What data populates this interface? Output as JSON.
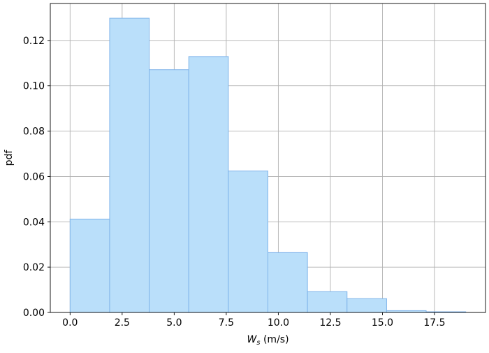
{
  "chart_data": {
    "type": "bar",
    "subtype": "histogram",
    "bin_edges": [
      0.0,
      1.9,
      3.8,
      5.7,
      7.6,
      9.5,
      11.4,
      13.3,
      15.2,
      17.1,
      19.0
    ],
    "values": [
      0.0412,
      0.1298,
      0.1071,
      0.1129,
      0.0624,
      0.0264,
      0.0092,
      0.0061,
      0.0008,
      0.0003
    ],
    "xlabel_symbol": "W",
    "xlabel_subscript": "s",
    "xlabel_unit": " (m/s)",
    "ylabel": "pdf",
    "xlim": [
      -0.95,
      19.95
    ],
    "ylim": [
      0,
      0.1363
    ],
    "xticks": [
      0.0,
      2.5,
      5.0,
      7.5,
      10.0,
      12.5,
      15.0,
      17.5
    ],
    "xtick_labels": [
      "0.0",
      "2.5",
      "5.0",
      "7.5",
      "10.0",
      "12.5",
      "15.0",
      "17.5"
    ],
    "yticks": [
      0.0,
      0.02,
      0.04,
      0.06,
      0.08,
      0.1,
      0.12
    ],
    "ytick_labels": [
      "0.00",
      "0.02",
      "0.04",
      "0.06",
      "0.08",
      "0.10",
      "0.12"
    ],
    "grid": true,
    "legend": "none",
    "colors": {
      "bar_fill": "#badffa",
      "bar_edge": "#7fb4ea",
      "grid": "#b0b0b0",
      "axis": "#000000"
    }
  }
}
